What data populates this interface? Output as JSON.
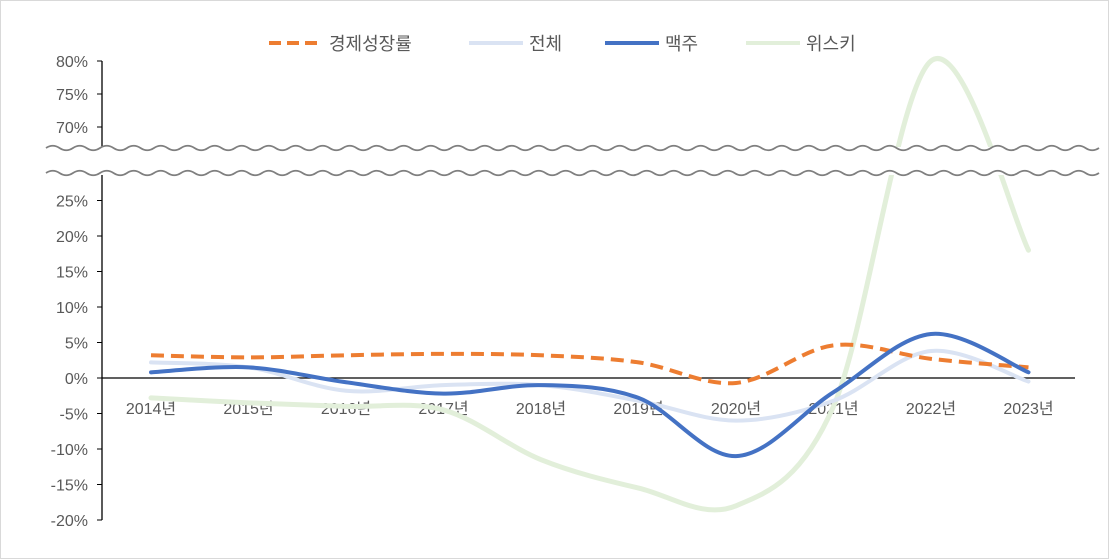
{
  "chart_data": {
    "type": "line",
    "title": "",
    "xlabel": "",
    "ylabel": "",
    "categories": [
      "2014년",
      "2015년",
      "2016년",
      "2017년",
      "2018년",
      "2019년",
      "2020년",
      "2021년",
      "2022년",
      "2023년"
    ],
    "y_axis_break": {
      "lower_range": [
        -20,
        25
      ],
      "upper_range": [
        70,
        80
      ]
    },
    "y_ticks_lower": [
      "-20%",
      "-15%",
      "-10%",
      "-5%",
      "0%",
      "5%",
      "10%",
      "15%",
      "20%",
      "25%"
    ],
    "y_ticks_upper": [
      "70%",
      "75%",
      "80%"
    ],
    "legend_position": "top",
    "series": [
      {
        "name": "경제성장률",
        "style": "dashed",
        "color": "#ed7d31",
        "values": [
          3.2,
          2.9,
          3.2,
          3.4,
          3.2,
          2.2,
          -0.7,
          4.6,
          2.7,
          1.5
        ]
      },
      {
        "name": "전체",
        "style": "solid",
        "color": "#dae3f3",
        "values": [
          2.2,
          1.5,
          -1.8,
          -1.0,
          -1.0,
          -3.2,
          -6.0,
          -3.2,
          3.8,
          -0.5
        ]
      },
      {
        "name": "맥주",
        "style": "solid",
        "color": "#4472c4",
        "values": [
          0.8,
          1.5,
          -0.6,
          -2.2,
          -1.0,
          -2.8,
          -11.0,
          -2.0,
          6.2,
          0.8
        ]
      },
      {
        "name": "위스키",
        "style": "solid",
        "color": "#e2efda",
        "values": [
          -2.8,
          -3.5,
          -4.0,
          -4.5,
          -11.5,
          -15.5,
          -18.0,
          -4.0,
          80.0,
          18.0
        ]
      }
    ]
  }
}
